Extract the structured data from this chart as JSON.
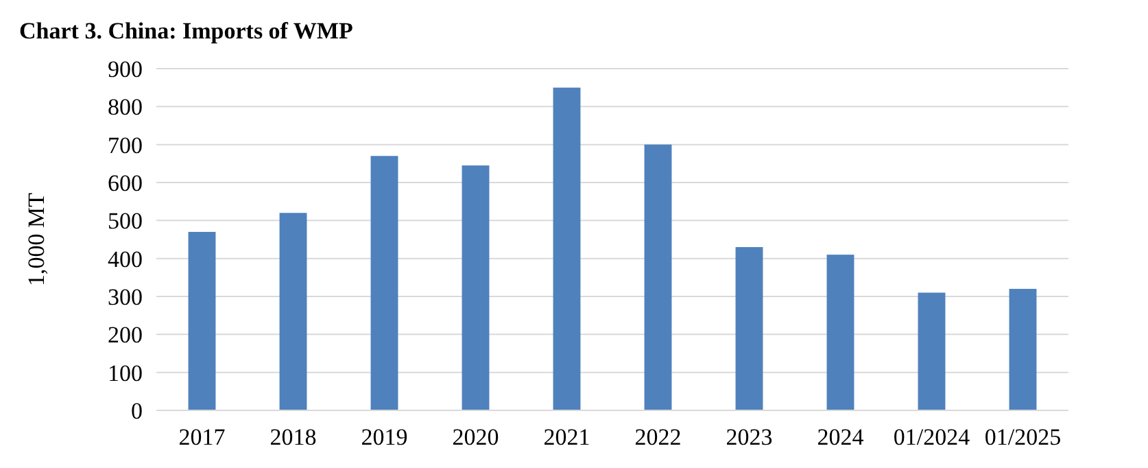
{
  "chart_data": {
    "type": "bar",
    "title": "Chart 3. China: Imports of WMP",
    "ylabel": "1,000 MT",
    "categories": [
      "2017",
      "2018",
      "2019",
      "2020",
      "2021",
      "2022",
      "2023",
      "2024",
      "01/2024",
      "01/2025"
    ],
    "values": [
      470,
      520,
      670,
      645,
      850,
      700,
      430,
      410,
      310,
      320
    ],
    "color": "#4f81bd",
    "ylim": [
      0,
      900
    ],
    "yticks": [
      0,
      100,
      200,
      300,
      400,
      500,
      600,
      700,
      800,
      900
    ],
    "grid": "y"
  }
}
